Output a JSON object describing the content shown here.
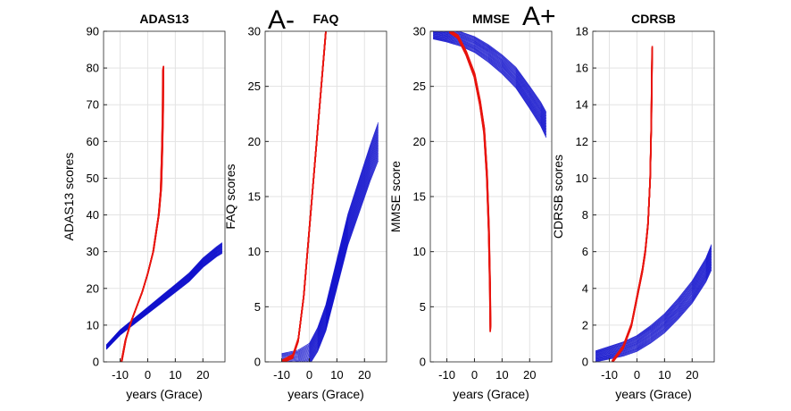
{
  "legend": [
    {
      "label": "A-",
      "color": "#1f6fb5"
    },
    {
      "label": "A+",
      "color": "#e0201b"
    }
  ],
  "colors": {
    "a_neg_curves": "#1010cc",
    "a_pos_curves": "#e8140e"
  },
  "chart_data": [
    {
      "type": "line",
      "title": "ADAS13",
      "xlabel": "years (Grace)",
      "ylabel": "ADAS13 scores",
      "xlim": [
        -16,
        28
      ],
      "ylim": [
        0,
        90
      ],
      "xticks": [
        -10,
        0,
        10,
        20
      ],
      "yticks": [
        0,
        10,
        20,
        30,
        40,
        50,
        60,
        70,
        80,
        90
      ],
      "grid": true,
      "series": [
        {
          "group": "A+",
          "color": "#e8140e",
          "band": 1.2,
          "count": 12,
          "x": [
            -9.5,
            -8,
            -6,
            -4,
            -2,
            0,
            2,
            3,
            4,
            4.8,
            5.2,
            5.5,
            5.6
          ],
          "y": [
            0,
            6,
            11,
            15,
            19,
            24,
            30,
            35,
            40,
            47,
            57,
            68,
            80
          ]
        },
        {
          "group": "A-",
          "color": "#1010cc",
          "band": 2.5,
          "count": 20,
          "x": [
            -15,
            -10,
            -5,
            0,
            5,
            10,
            15,
            20,
            25,
            27
          ],
          "y": [
            4,
            8,
            11,
            14,
            17,
            20,
            23,
            27,
            30,
            31
          ]
        }
      ]
    },
    {
      "type": "line",
      "title": "FAQ",
      "xlabel": "years (Grace)",
      "ylabel": "FAQ scores",
      "xlim": [
        -16,
        28
      ],
      "ylim": [
        0,
        30
      ],
      "xticks": [
        -10,
        0,
        10,
        20
      ],
      "yticks": [
        0,
        5,
        10,
        15,
        20,
        25,
        30
      ],
      "grid": true,
      "series": [
        {
          "group": "A+",
          "color": "#e8140e",
          "band": 0.8,
          "count": 12,
          "x": [
            -10,
            -6,
            -4,
            -2,
            0,
            2,
            4,
            5,
            6
          ],
          "y": [
            0,
            0.5,
            2,
            6,
            12,
            18,
            24,
            27,
            30
          ]
        },
        {
          "group": "A-",
          "color": "#1010cc",
          "band": 3.0,
          "count": 20,
          "x": [
            -10,
            -4,
            0,
            3,
            6,
            10,
            14,
            18,
            22,
            25
          ],
          "y": [
            0,
            0.2,
            0.7,
            2,
            4,
            8,
            12,
            15,
            18,
            20
          ]
        }
      ]
    },
    {
      "type": "line",
      "title": "MMSE",
      "xlabel": "years (Grace)",
      "ylabel": "MMSE score",
      "xlim": [
        -16,
        28
      ],
      "ylim": [
        0,
        30
      ],
      "xticks": [
        -10,
        0,
        10,
        20
      ],
      "yticks": [
        0,
        5,
        10,
        15,
        20,
        25,
        30
      ],
      "grid": true,
      "series": [
        {
          "group": "A+",
          "color": "#e8140e",
          "band": 0.6,
          "count": 12,
          "x": [
            -9,
            -6,
            -3,
            0,
            2,
            3.5,
            4.5,
            5.2,
            5.6,
            5.8
          ],
          "y": [
            30,
            29.5,
            28,
            26,
            23.5,
            21,
            17,
            12,
            7,
            3
          ]
        },
        {
          "group": "A-",
          "color": "#1010cc",
          "band": 2.0,
          "count": 20,
          "x": [
            -15,
            -10,
            -5,
            0,
            5,
            10,
            15,
            20,
            24,
            26
          ],
          "y": [
            29.8,
            29.6,
            29.3,
            28.8,
            28,
            27,
            25.8,
            24,
            22.5,
            21.5
          ]
        }
      ]
    },
    {
      "type": "line",
      "title": "CDRSB",
      "xlabel": "years (Grace)",
      "ylabel": "CDRSB scores",
      "xlim": [
        -16,
        28
      ],
      "ylim": [
        0,
        18
      ],
      "xticks": [
        -10,
        0,
        10,
        20
      ],
      "yticks": [
        0,
        2,
        4,
        6,
        8,
        10,
        12,
        14,
        16,
        18
      ],
      "grid": true,
      "series": [
        {
          "group": "A+",
          "color": "#e8140e",
          "band": 0.4,
          "count": 12,
          "x": [
            -9,
            -5,
            -2,
            0,
            2,
            3,
            4,
            4.8,
            5.2,
            5.5
          ],
          "y": [
            0,
            0.8,
            2,
            3.5,
            5,
            6,
            7.5,
            10,
            13,
            17
          ]
        },
        {
          "group": "A-",
          "color": "#1010cc",
          "band": 1.2,
          "count": 20,
          "x": [
            -15,
            -10,
            -5,
            0,
            5,
            10,
            15,
            20,
            25,
            27
          ],
          "y": [
            0.3,
            0.5,
            0.7,
            1.0,
            1.5,
            2.1,
            2.9,
            3.8,
            5,
            5.7
          ]
        }
      ]
    }
  ]
}
